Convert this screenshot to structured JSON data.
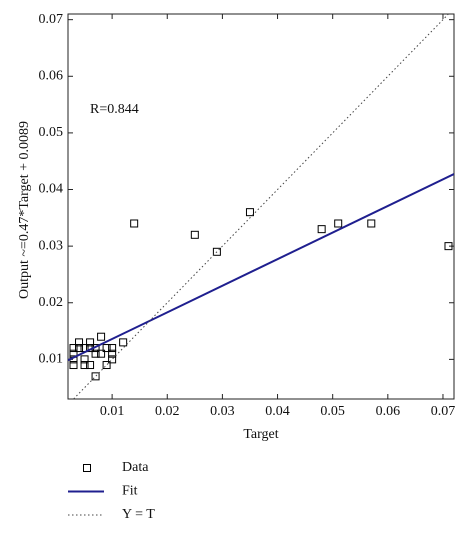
{
  "chart_data": {
    "type": "scatter",
    "x_label": "Target",
    "y_label": "Output ~=0.47*Target + 0.0089",
    "annotation": "R=0.844",
    "xlim": [
      0.002,
      0.072
    ],
    "ylim": [
      0.003,
      0.071
    ],
    "xticks": [
      0.01,
      0.02,
      0.03,
      0.04,
      0.05,
      0.06,
      0.07
    ],
    "yticks": [
      0.01,
      0.02,
      0.03,
      0.04,
      0.05,
      0.06,
      0.07
    ],
    "series": [
      {
        "name": "Data",
        "type": "scatter",
        "color": "#000000",
        "x": [
          0.003,
          0.003,
          0.003,
          0.003,
          0.004,
          0.004,
          0.005,
          0.005,
          0.005,
          0.006,
          0.006,
          0.006,
          0.007,
          0.007,
          0.007,
          0.008,
          0.008,
          0.009,
          0.009,
          0.01,
          0.01,
          0.01,
          0.012,
          0.014,
          0.025,
          0.029,
          0.035,
          0.048,
          0.051,
          0.057,
          0.071
        ],
        "values": [
          0.012,
          0.011,
          0.01,
          0.009,
          0.012,
          0.013,
          0.012,
          0.01,
          0.009,
          0.013,
          0.012,
          0.009,
          0.011,
          0.007,
          0.012,
          0.014,
          0.011,
          0.012,
          0.009,
          0.012,
          0.011,
          0.01,
          0.013,
          0.034,
          0.032,
          0.029,
          0.036,
          0.033,
          0.034,
          0.034,
          0.03
        ]
      },
      {
        "name": "Fit",
        "type": "line",
        "color": "#1f1f8f",
        "slope": 0.47,
        "intercept": 0.0089
      },
      {
        "name": "Y = T",
        "type": "line",
        "color": "#444444",
        "dotted": true,
        "slope": 1,
        "intercept": 0
      }
    ]
  }
}
